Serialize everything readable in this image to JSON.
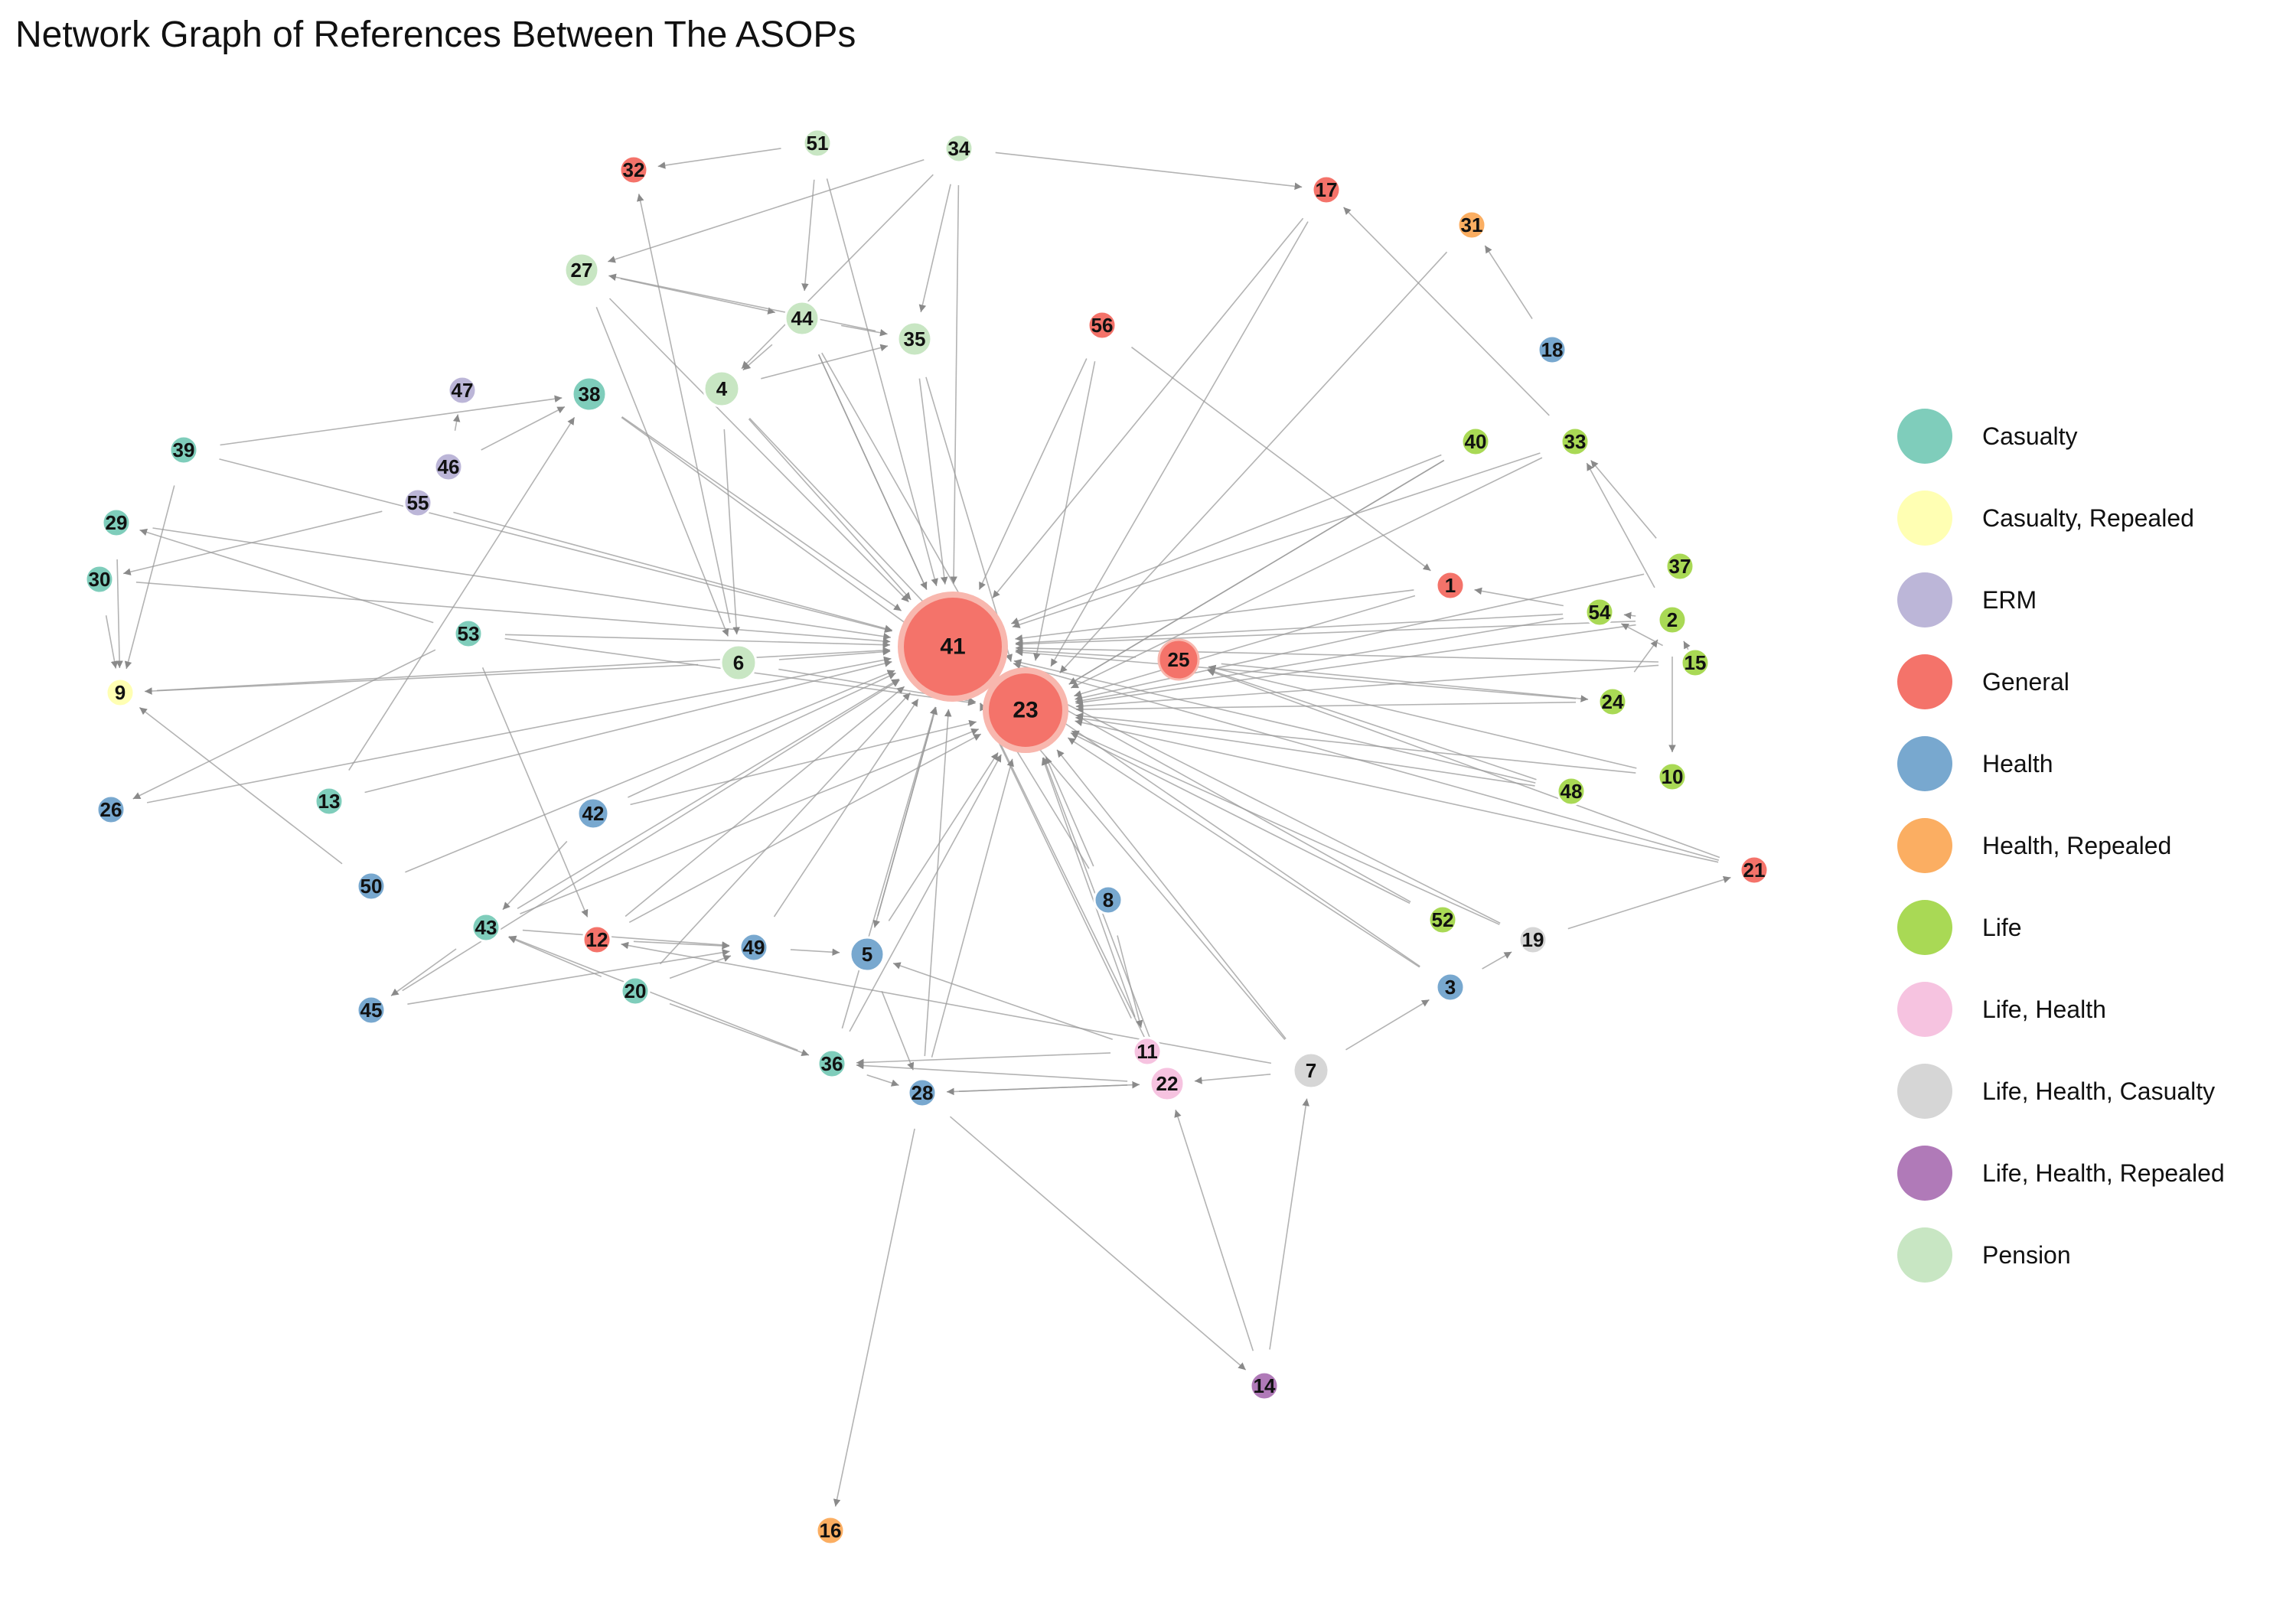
{
  "title": "Network Graph of References Between The ASOPs",
  "categories": {
    "Casualty": "#7fcdbb",
    "Casualty, Repealed": "#ffffb3",
    "ERM": "#bcb6d8",
    "General": "#f4736a",
    "Health": "#78a8cf",
    "Health, Repealed": "#fbae62",
    "Life": "#a9d955",
    "Life, Health": "#f6c3e0",
    "Life, Health, Casualty": "#d6d6d6",
    "Life, Health, Repealed": "#b07ab8",
    "Pension": "#c8e6c3"
  },
  "legend": [
    "Casualty",
    "Casualty, Repealed",
    "ERM",
    "General",
    "Health",
    "Health, Repealed",
    "Life",
    "Life, Health",
    "Life, Health, Casualty",
    "Life, Health, Repealed",
    "Pension"
  ],
  "nodes": [
    {
      "id": "41",
      "category": "General"
    },
    {
      "id": "23",
      "category": "General"
    },
    {
      "id": "25",
      "category": "General"
    },
    {
      "id": "1",
      "category": "General"
    },
    {
      "id": "12",
      "category": "General"
    },
    {
      "id": "17",
      "category": "General"
    },
    {
      "id": "21",
      "category": "General"
    },
    {
      "id": "32",
      "category": "General"
    },
    {
      "id": "56",
      "category": "General"
    },
    {
      "id": "2",
      "category": "Life"
    },
    {
      "id": "10",
      "category": "Life"
    },
    {
      "id": "15",
      "category": "Life"
    },
    {
      "id": "24",
      "category": "Life"
    },
    {
      "id": "33",
      "category": "Life"
    },
    {
      "id": "37",
      "category": "Life"
    },
    {
      "id": "40",
      "category": "Life"
    },
    {
      "id": "48",
      "category": "Life"
    },
    {
      "id": "52",
      "category": "Life"
    },
    {
      "id": "54",
      "category": "Life"
    },
    {
      "id": "4",
      "category": "Pension"
    },
    {
      "id": "6",
      "category": "Pension"
    },
    {
      "id": "27",
      "category": "Pension"
    },
    {
      "id": "34",
      "category": "Pension"
    },
    {
      "id": "35",
      "category": "Pension"
    },
    {
      "id": "44",
      "category": "Pension"
    },
    {
      "id": "51",
      "category": "Pension"
    },
    {
      "id": "13",
      "category": "Casualty"
    },
    {
      "id": "20",
      "category": "Casualty"
    },
    {
      "id": "29",
      "category": "Casualty"
    },
    {
      "id": "30",
      "category": "Casualty"
    },
    {
      "id": "36",
      "category": "Casualty"
    },
    {
      "id": "38",
      "category": "Casualty"
    },
    {
      "id": "39",
      "category": "Casualty"
    },
    {
      "id": "43",
      "category": "Casualty"
    },
    {
      "id": "53",
      "category": "Casualty"
    },
    {
      "id": "9",
      "category": "Casualty, Repealed"
    },
    {
      "id": "46",
      "category": "ERM"
    },
    {
      "id": "47",
      "category": "ERM"
    },
    {
      "id": "55",
      "category": "ERM"
    },
    {
      "id": "3",
      "category": "Health"
    },
    {
      "id": "5",
      "category": "Health"
    },
    {
      "id": "8",
      "category": "Health"
    },
    {
      "id": "18",
      "category": "Health"
    },
    {
      "id": "26",
      "category": "Health"
    },
    {
      "id": "28",
      "category": "Health"
    },
    {
      "id": "42",
      "category": "Health"
    },
    {
      "id": "45",
      "category": "Health"
    },
    {
      "id": "49",
      "category": "Health"
    },
    {
      "id": "50",
      "category": "Health"
    },
    {
      "id": "16",
      "category": "Health, Repealed"
    },
    {
      "id": "31",
      "category": "Health, Repealed"
    },
    {
      "id": "11",
      "category": "Life, Health"
    },
    {
      "id": "22",
      "category": "Life, Health"
    },
    {
      "id": "7",
      "category": "Life, Health, Casualty"
    },
    {
      "id": "19",
      "category": "Life, Health, Casualty"
    },
    {
      "id": "14",
      "category": "Life, Health, Repealed"
    }
  ],
  "edges": [
    [
      "53",
      "41"
    ],
    [
      "6",
      "41"
    ],
    [
      "4",
      "41"
    ],
    [
      "38",
      "41"
    ],
    [
      "39",
      "41"
    ],
    [
      "55",
      "41"
    ],
    [
      "42",
      "41"
    ],
    [
      "12",
      "41"
    ],
    [
      "13",
      "41"
    ],
    [
      "43",
      "41"
    ],
    [
      "49",
      "41"
    ],
    [
      "5",
      "41"
    ],
    [
      "36",
      "41"
    ],
    [
      "28",
      "41"
    ],
    [
      "20",
      "41"
    ],
    [
      "35",
      "41"
    ],
    [
      "44",
      "41"
    ],
    [
      "34",
      "41"
    ],
    [
      "51",
      "41"
    ],
    [
      "27",
      "41"
    ],
    [
      "56",
      "41"
    ],
    [
      "25",
      "41"
    ],
    [
      "1",
      "41"
    ],
    [
      "54",
      "41"
    ],
    [
      "2",
      "41"
    ],
    [
      "40",
      "41"
    ],
    [
      "17",
      "41"
    ],
    [
      "52",
      "41"
    ],
    [
      "19",
      "41"
    ],
    [
      "7",
      "41"
    ],
    [
      "22",
      "41"
    ],
    [
      "11",
      "41"
    ],
    [
      "8",
      "41"
    ],
    [
      "3",
      "41"
    ],
    [
      "45",
      "41"
    ],
    [
      "26",
      "41"
    ],
    [
      "50",
      "41"
    ],
    [
      "9",
      "41"
    ],
    [
      "29",
      "41"
    ],
    [
      "30",
      "41"
    ],
    [
      "33",
      "41"
    ],
    [
      "24",
      "41"
    ],
    [
      "48",
      "41"
    ],
    [
      "21",
      "41"
    ],
    [
      "15",
      "41"
    ],
    [
      "53",
      "23"
    ],
    [
      "6",
      "23"
    ],
    [
      "4",
      "23"
    ],
    [
      "38",
      "23"
    ],
    [
      "42",
      "23"
    ],
    [
      "12",
      "23"
    ],
    [
      "43",
      "23"
    ],
    [
      "5",
      "23"
    ],
    [
      "36",
      "23"
    ],
    [
      "28",
      "23"
    ],
    [
      "35",
      "23"
    ],
    [
      "44",
      "23"
    ],
    [
      "56",
      "23"
    ],
    [
      "1",
      "23"
    ],
    [
      "54",
      "23"
    ],
    [
      "2",
      "23"
    ],
    [
      "40",
      "23"
    ],
    [
      "48",
      "23"
    ],
    [
      "24",
      "23"
    ],
    [
      "52",
      "23"
    ],
    [
      "19",
      "23"
    ],
    [
      "7",
      "23"
    ],
    [
      "22",
      "23"
    ],
    [
      "11",
      "23"
    ],
    [
      "8",
      "23"
    ],
    [
      "3",
      "23"
    ],
    [
      "10",
      "23"
    ],
    [
      "21",
      "23"
    ],
    [
      "15",
      "23"
    ],
    [
      "17",
      "23"
    ],
    [
      "31",
      "23"
    ],
    [
      "33",
      "23"
    ],
    [
      "37",
      "23"
    ],
    [
      "34",
      "17"
    ],
    [
      "34",
      "27"
    ],
    [
      "34",
      "4"
    ],
    [
      "34",
      "35"
    ],
    [
      "51",
      "32"
    ],
    [
      "51",
      "44"
    ],
    [
      "44",
      "35"
    ],
    [
      "27",
      "44"
    ],
    [
      "44",
      "4"
    ],
    [
      "4",
      "35"
    ],
    [
      "6",
      "32"
    ],
    [
      "35",
      "27"
    ],
    [
      "46",
      "47"
    ],
    [
      "46",
      "38"
    ],
    [
      "39",
      "38"
    ],
    [
      "53",
      "26"
    ],
    [
      "53",
      "12"
    ],
    [
      "39",
      "9"
    ],
    [
      "29",
      "9"
    ],
    [
      "30",
      "9"
    ],
    [
      "50",
      "9"
    ],
    [
      "43",
      "45"
    ],
    [
      "20",
      "43"
    ],
    [
      "20",
      "36"
    ],
    [
      "36",
      "28"
    ],
    [
      "28",
      "22"
    ],
    [
      "22",
      "28"
    ],
    [
      "28",
      "16"
    ],
    [
      "28",
      "14"
    ],
    [
      "14",
      "22"
    ],
    [
      "14",
      "7"
    ],
    [
      "7",
      "22"
    ],
    [
      "3",
      "19"
    ],
    [
      "19",
      "21"
    ],
    [
      "2",
      "33"
    ],
    [
      "2",
      "54"
    ],
    [
      "54",
      "1"
    ],
    [
      "2",
      "10"
    ],
    [
      "2",
      "15"
    ],
    [
      "24",
      "2"
    ],
    [
      "18",
      "31"
    ],
    [
      "33",
      "17"
    ],
    [
      "37",
      "33"
    ],
    [
      "12",
      "49"
    ],
    [
      "49",
      "5"
    ],
    [
      "5",
      "28"
    ],
    [
      "42",
      "43"
    ],
    [
      "8",
      "11"
    ],
    [
      "11",
      "5"
    ],
    [
      "56",
      "1"
    ],
    [
      "4",
      "6"
    ],
    [
      "27",
      "6"
    ],
    [
      "55",
      "30"
    ],
    [
      "53",
      "29"
    ],
    [
      "6",
      "9"
    ],
    [
      "13",
      "38"
    ],
    [
      "43",
      "49"
    ],
    [
      "20",
      "49"
    ],
    [
      "36",
      "43"
    ],
    [
      "45",
      "49"
    ],
    [
      "25",
      "24"
    ],
    [
      "44",
      "41"
    ],
    [
      "41",
      "5"
    ],
    [
      "21",
      "25"
    ],
    [
      "10",
      "25"
    ],
    [
      "48",
      "25"
    ],
    [
      "40",
      "23"
    ],
    [
      "15",
      "54"
    ],
    [
      "22",
      "36"
    ],
    [
      "11",
      "36"
    ],
    [
      "7",
      "12"
    ],
    [
      "7",
      "3"
    ]
  ]
}
